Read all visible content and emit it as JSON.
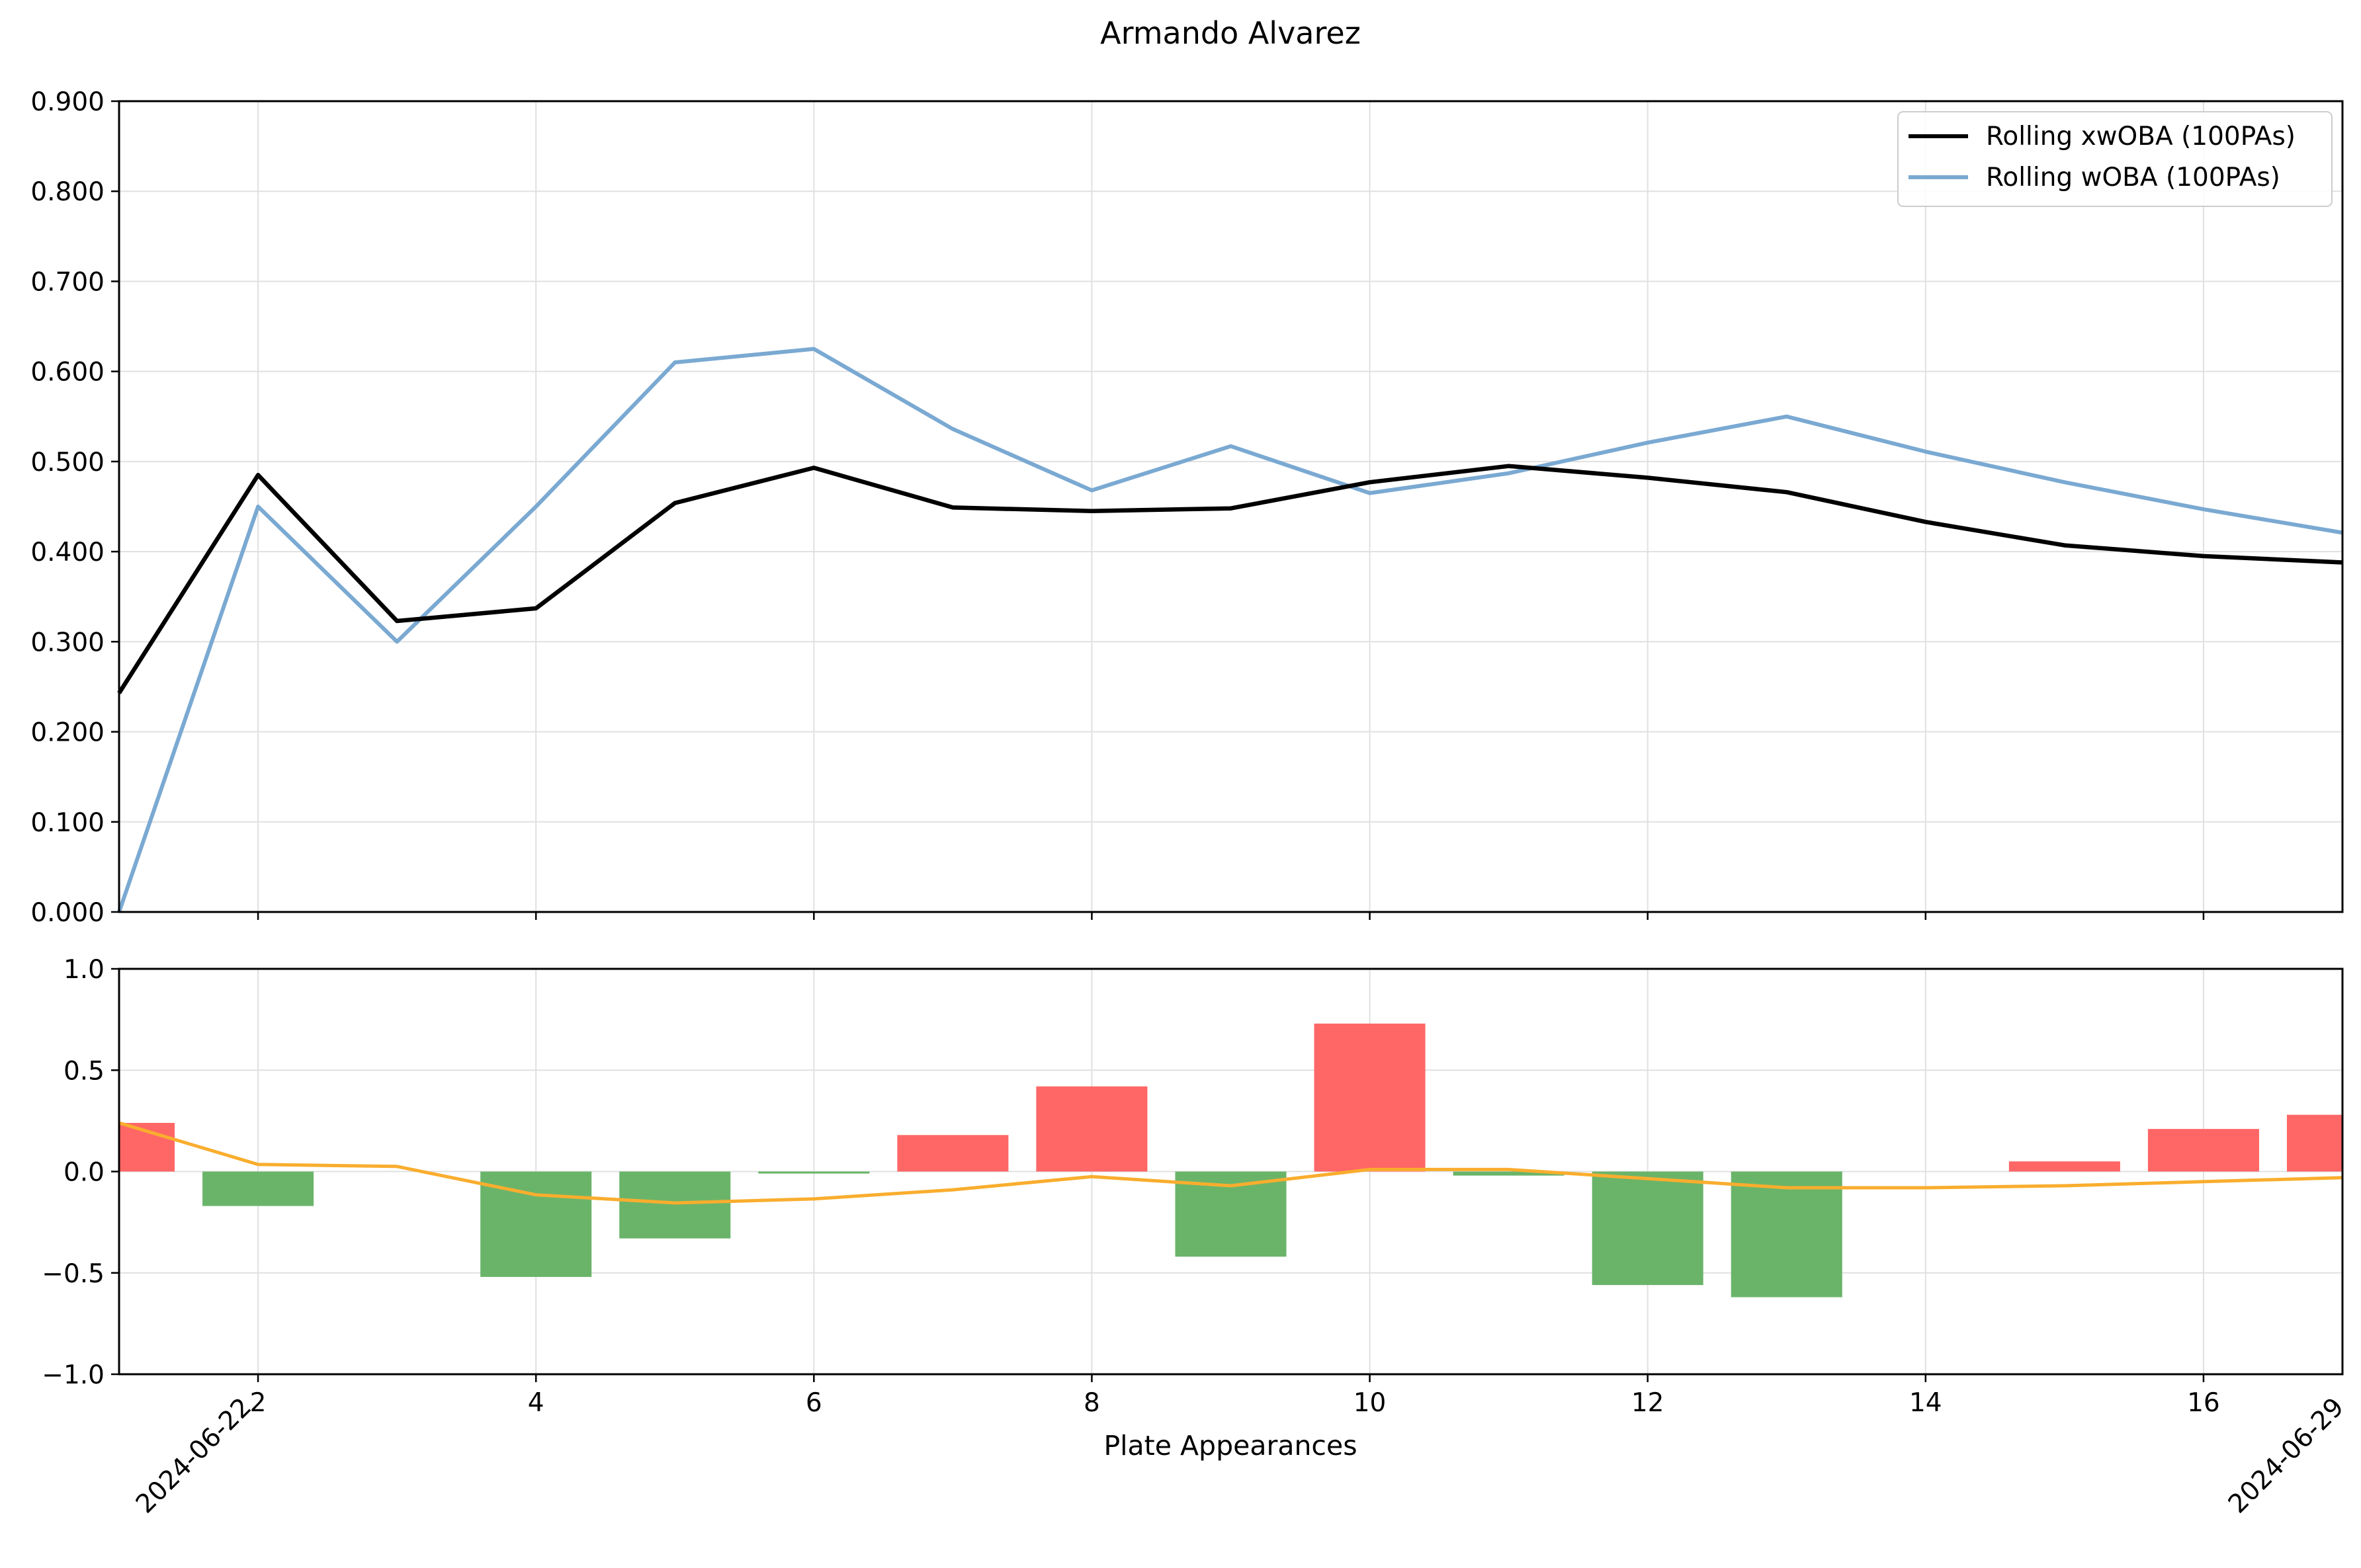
{
  "title": "Armando Alvarez",
  "colors": {
    "xwoba": "#000000",
    "woba": "#7aa9d2",
    "positive_bar": "#ff6666",
    "negative_bar": "#6ab46a",
    "rolling_diff": "#f9ad2e",
    "grid": "#e0e0e0"
  },
  "chart_data": [
    {
      "type": "line",
      "title": "Armando Alvarez",
      "xlabel": "",
      "ylabel": "",
      "xlim": [
        1,
        17
      ],
      "ylim": [
        0.0,
        0.9
      ],
      "x_ticks": [
        2,
        4,
        6,
        8,
        10,
        12,
        14,
        16
      ],
      "y_ticks": [
        "0.000",
        "0.100",
        "0.200",
        "0.300",
        "0.400",
        "0.500",
        "0.600",
        "0.700",
        "0.800",
        "0.900"
      ],
      "grid": true,
      "legend_position": "top-right",
      "x": [
        1,
        2,
        3,
        4,
        5,
        6,
        7,
        8,
        9,
        10,
        11,
        12,
        13,
        14,
        15,
        16,
        17
      ],
      "series": [
        {
          "name": "Rolling xwOBA (100PAs)",
          "color": "#000000",
          "values": [
            0.243,
            0.485,
            0.323,
            0.337,
            0.454,
            0.493,
            0.449,
            0.445,
            0.448,
            0.477,
            0.495,
            0.482,
            0.466,
            0.433,
            0.407,
            0.395,
            0.388
          ]
        },
        {
          "name": "Rolling wOBA (100PAs)",
          "color": "#7aa9d2",
          "values": [
            0.0,
            0.45,
            0.3,
            0.45,
            0.61,
            0.625,
            0.536,
            0.468,
            0.517,
            0.465,
            0.487,
            0.521,
            0.55,
            0.511,
            0.477,
            0.447,
            0.421
          ]
        }
      ]
    },
    {
      "type": "bar",
      "xlabel": "Plate Appearances",
      "ylabel": "",
      "xlim": [
        1,
        17
      ],
      "ylim": [
        -1.0,
        1.0
      ],
      "x_ticks": [
        2,
        4,
        6,
        8,
        10,
        12,
        14,
        16
      ],
      "y_ticks": [
        "1.0",
        "0.5",
        "0.0",
        "−0.5",
        "−1.0"
      ],
      "grid": true,
      "date_labels": [
        "2024-06-22",
        "2024-06-29"
      ],
      "x": [
        1,
        2,
        3,
        4,
        5,
        6,
        7,
        8,
        9,
        10,
        11,
        12,
        13,
        14,
        15,
        16,
        17
      ],
      "values": [
        0.24,
        -0.17,
        0.0,
        -0.52,
        -0.33,
        -0.01,
        0.18,
        0.42,
        -0.42,
        0.73,
        -0.02,
        -0.56,
        -0.62,
        0.0,
        0.05,
        0.21,
        0.28
      ],
      "line_series": {
        "color": "#f9ad2e",
        "values": [
          0.24,
          0.035,
          0.025,
          -0.115,
          -0.155,
          -0.135,
          -0.09,
          -0.025,
          -0.07,
          0.01,
          0.01,
          -0.035,
          -0.08,
          -0.08,
          -0.07,
          -0.05,
          -0.03
        ]
      }
    }
  ]
}
